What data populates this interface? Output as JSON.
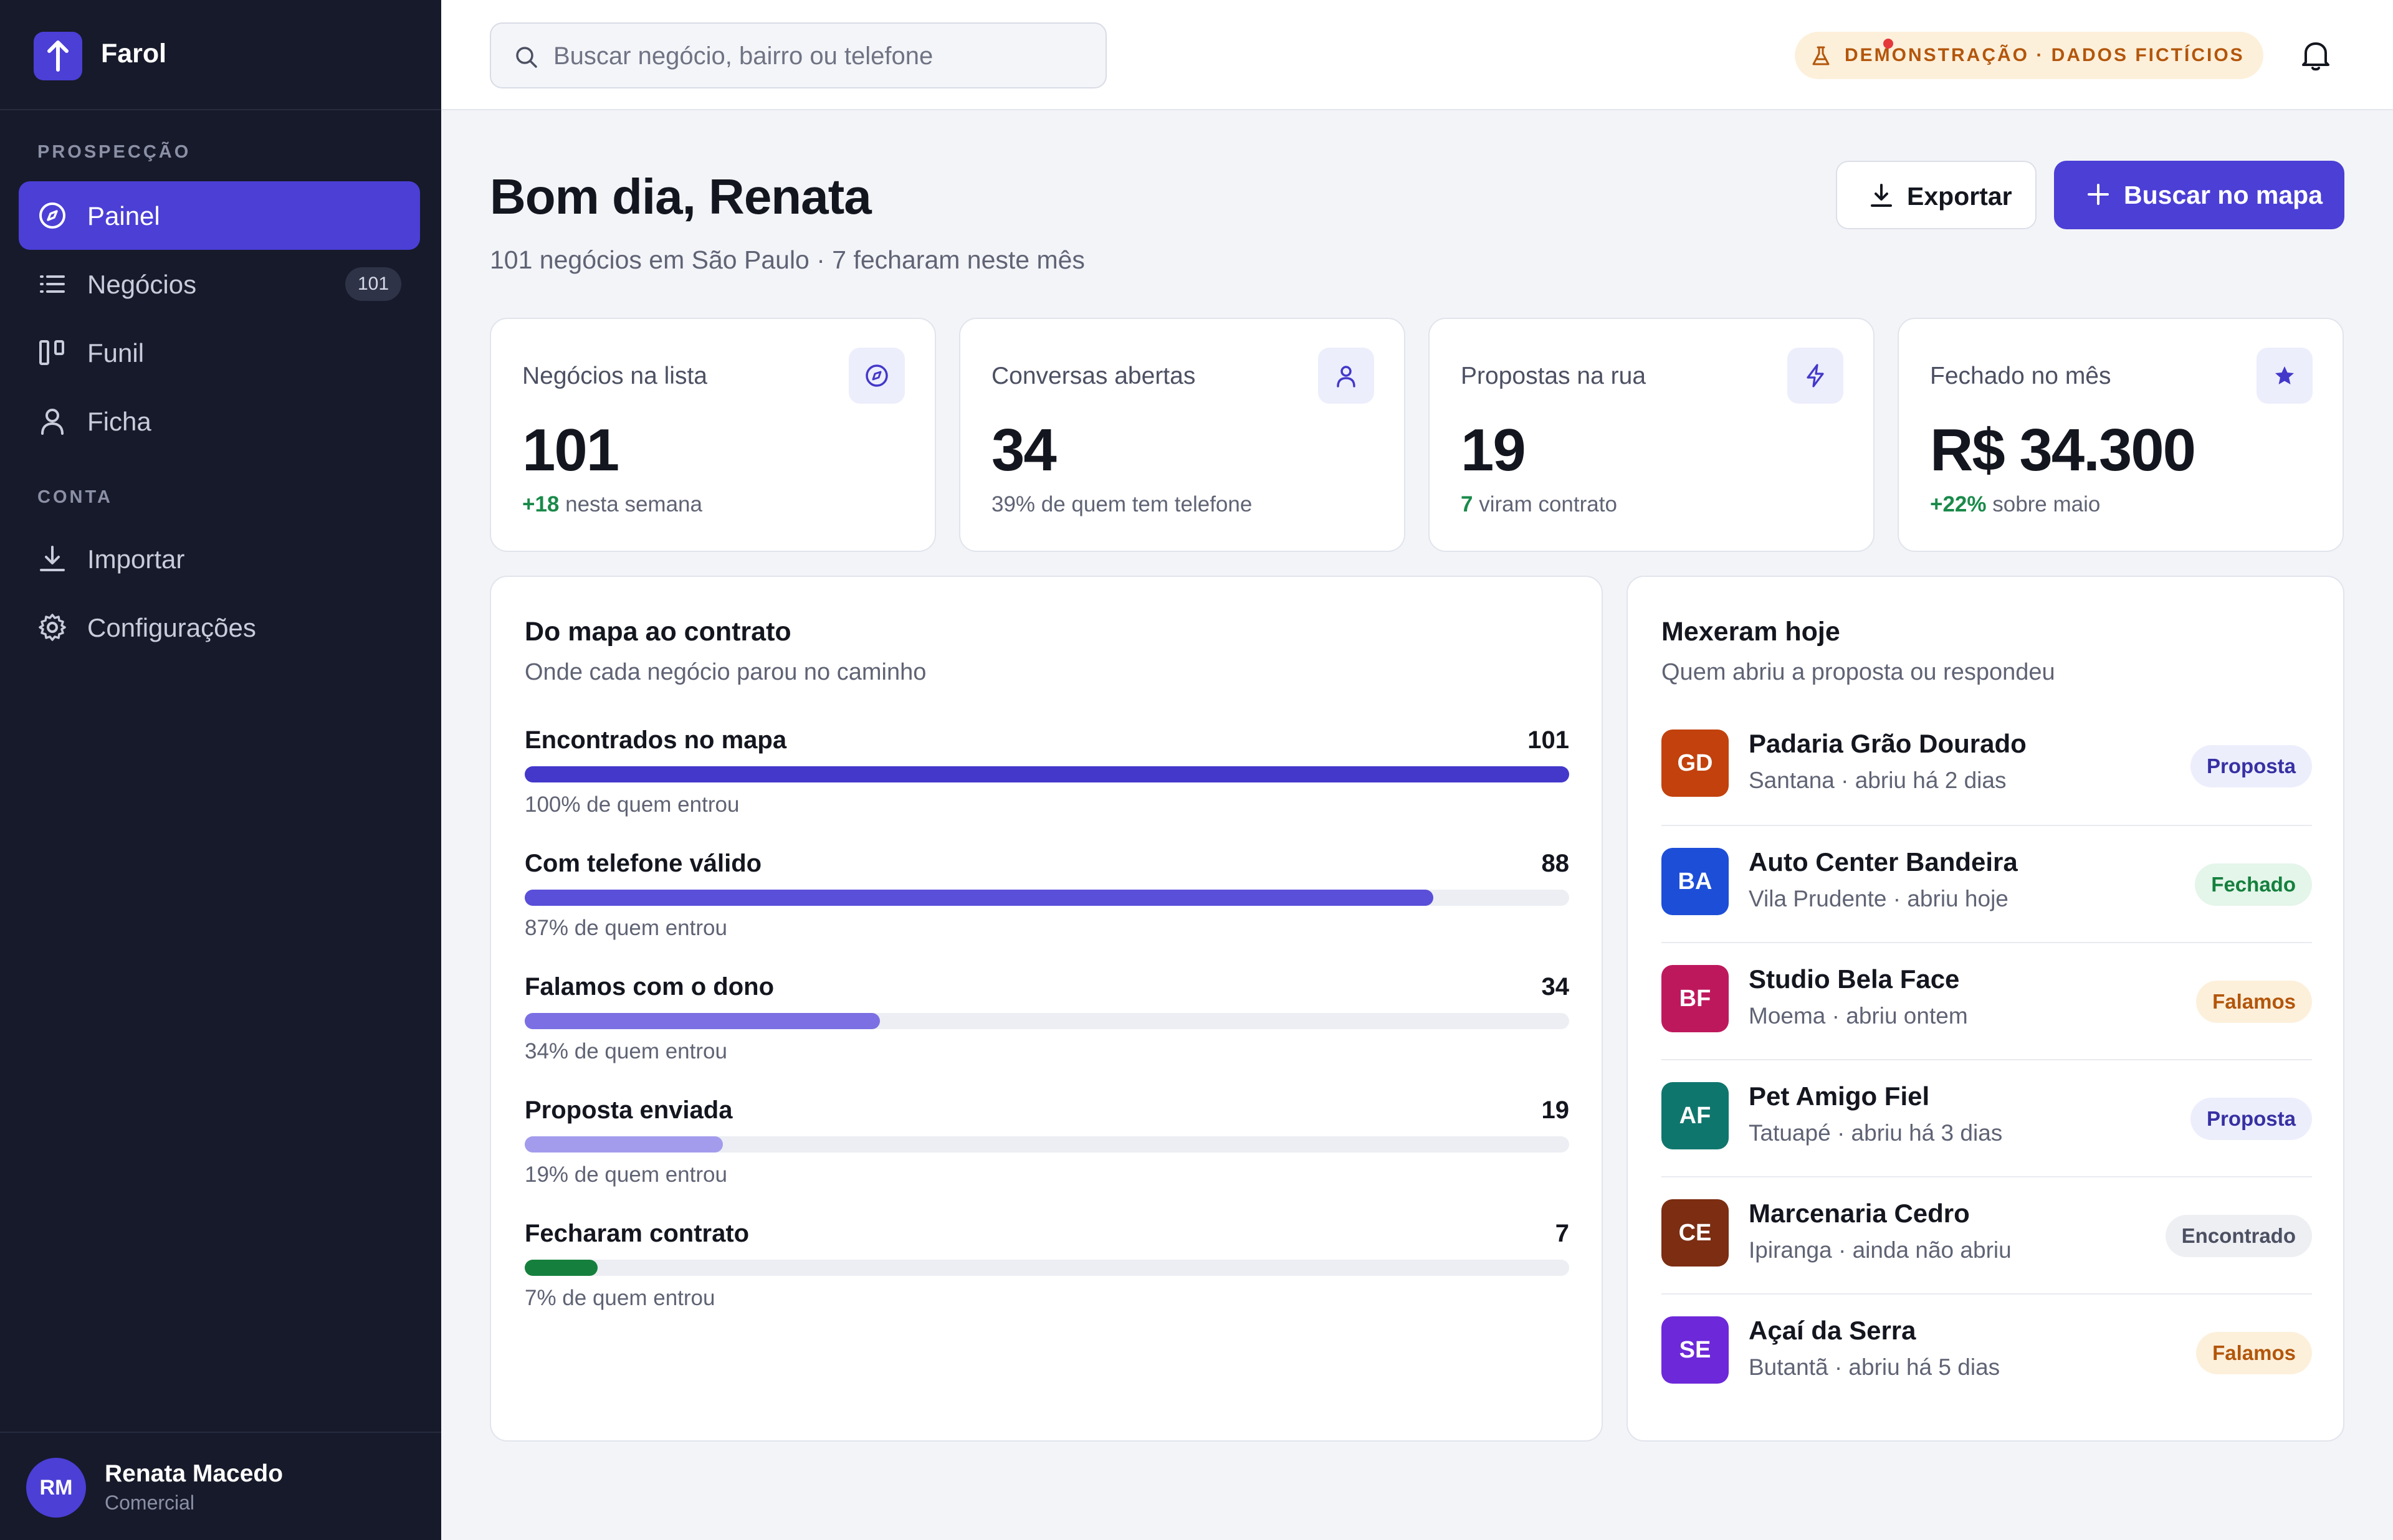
{
  "brand": {
    "name": "Farol"
  },
  "sidebar": {
    "sections": [
      {
        "label": "PROSPECÇÃO"
      },
      {
        "label": "CONTA"
      }
    ],
    "items": [
      {
        "label": "Painel",
        "icon": "compass-icon",
        "active": true
      },
      {
        "label": "Negócios",
        "icon": "list-icon",
        "badge": "101"
      },
      {
        "label": "Funil",
        "icon": "kanban-icon"
      },
      {
        "label": "Ficha",
        "icon": "user-icon"
      },
      {
        "label": "Importar",
        "icon": "download-icon"
      },
      {
        "label": "Configurações",
        "icon": "gear-icon"
      }
    ],
    "user": {
      "initials": "RM",
      "name": "Renata Macedo",
      "role": "Comercial"
    }
  },
  "topbar": {
    "search_placeholder": "Buscar negócio, bairro ou telefone",
    "demo_badge": "DEMONSTRAÇÃO · DADOS FICTÍCIOS"
  },
  "header": {
    "greeting": "Bom dia, Renata",
    "subtitle": "101 negócios em São Paulo · 7 fecharam neste mês",
    "export_label": "Exportar",
    "map_label": "Buscar no mapa"
  },
  "stats": [
    {
      "label": "Negócios na lista",
      "value": "101",
      "highlight": "+18",
      "note": " nesta semana",
      "icon": "compass-icon"
    },
    {
      "label": "Conversas abertas",
      "value": "34",
      "highlight": "",
      "note": "39% de quem tem telefone",
      "icon": "user-icon"
    },
    {
      "label": "Propostas na rua",
      "value": "19",
      "highlight": "7",
      "note": " viram contrato",
      "icon": "bolt-icon"
    },
    {
      "label": "Fechado no mês",
      "value": "R$ 34.300",
      "highlight": "+22%",
      "note": " sobre maio",
      "icon": "star-icon"
    }
  ],
  "funnel": {
    "title": "Do mapa ao contrato",
    "subtitle": "Onde cada negócio parou no caminho",
    "stages": [
      {
        "label": "Encontrados no mapa",
        "count": "101",
        "fraction": 1.0,
        "pct_text": "100% de quem entrou",
        "color": "#4338ca"
      },
      {
        "label": "Com telefone válido",
        "count": "88",
        "fraction": 0.87,
        "pct_text": "87% de quem entrou",
        "color": "#5a4fd9"
      },
      {
        "label": "Falamos com o dono",
        "count": "34",
        "fraction": 0.34,
        "pct_text": "34% de quem entrou",
        "color": "#7b6fe3"
      },
      {
        "label": "Proposta enviada",
        "count": "19",
        "fraction": 0.19,
        "pct_text": "19% de quem entrou",
        "color": "#a39ced"
      },
      {
        "label": "Fecharam contrato",
        "count": "7",
        "fraction": 0.07,
        "pct_text": "7% de quem entrou",
        "color": "#15803d"
      }
    ]
  },
  "activity": {
    "title": "Mexeram hoje",
    "subtitle": "Quem abriu a proposta ou respondeu",
    "items": [
      {
        "initials": "GD",
        "name": "Padaria Grão Dourado",
        "meta": "Santana · abriu há 2 dias",
        "status": "Proposta",
        "avatar_color": "#c2410c",
        "status_bg": "#eceefc",
        "status_fg": "#3730a3"
      },
      {
        "initials": "BA",
        "name": "Auto Center Bandeira",
        "meta": "Vila Prudente · abriu hoje",
        "status": "Fechado",
        "avatar_color": "#1d4ed8",
        "status_bg": "#e4f5ea",
        "status_fg": "#15803d"
      },
      {
        "initials": "BF",
        "name": "Studio Bela Face",
        "meta": "Moema · abriu ontem",
        "status": "Falamos",
        "avatar_color": "#be185d",
        "status_bg": "#fdf0db",
        "status_fg": "#b3560b"
      },
      {
        "initials": "AF",
        "name": "Pet Amigo Fiel",
        "meta": "Tatuapé · abriu há 3 dias",
        "status": "Proposta",
        "avatar_color": "#0f766e",
        "status_bg": "#eceefc",
        "status_fg": "#3730a3"
      },
      {
        "initials": "CE",
        "name": "Marcenaria Cedro",
        "meta": "Ipiranga · ainda não abriu",
        "status": "Encontrado",
        "avatar_color": "#7c2d12",
        "status_bg": "#eeeff3",
        "status_fg": "#4c5062"
      },
      {
        "initials": "SE",
        "name": "Açaí da Serra",
        "meta": "Butantã · abriu há 5 dias",
        "status": "Falamos",
        "avatar_color": "#6d28d9",
        "status_bg": "#fdf0db",
        "status_fg": "#b3560b"
      }
    ]
  }
}
